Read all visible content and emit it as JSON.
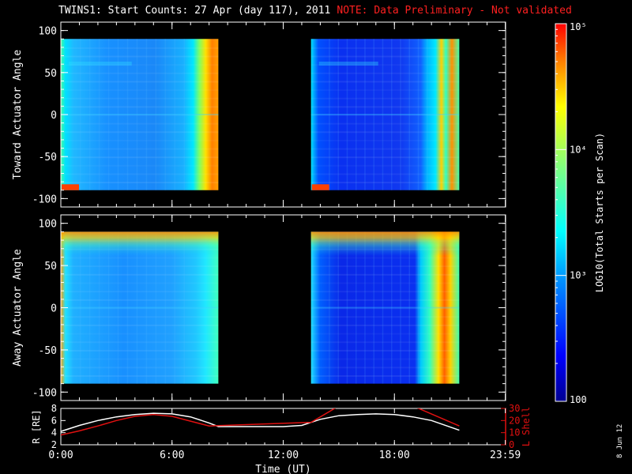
{
  "title": {
    "main": "TWINS1: Start Counts: 27 Apr (day 117), 2011",
    "note": "NOTE: Data Preliminary - Not validated"
  },
  "footer_date": "8 Jun 12",
  "colors": {
    "background": "#000000",
    "note": "#ff2020",
    "r_line": "#ffffff",
    "lshell_line": "#e01010"
  },
  "chart_data": [
    {
      "type": "heatmap",
      "panel": "toward",
      "ylabel": "Toward Actuator Angle",
      "ylim": [
        -110,
        110
      ],
      "yticks": [
        100,
        50,
        0,
        -50,
        -100
      ],
      "xlim": [
        0,
        24
      ],
      "data_blocks": [
        {
          "x": [
            0.0,
            8.5
          ],
          "y": [
            -90,
            90
          ]
        },
        {
          "x": [
            13.5,
            21.5
          ],
          "y": [
            -90,
            90
          ]
        }
      ],
      "features": [
        {
          "desc": "high counts near end of block",
          "x": [
            7.4,
            8.5
          ],
          "level": "high"
        },
        {
          "desc": "low-angle hot spot",
          "x": [
            0.0,
            1.2
          ],
          "y": [
            -90,
            -80
          ],
          "level": "high"
        },
        {
          "desc": "high counts near end of block",
          "x": [
            19.5,
            21.5
          ],
          "level": "high"
        }
      ]
    },
    {
      "type": "heatmap",
      "panel": "away",
      "ylabel": "Away Actuator Angle",
      "ylim": [
        -110,
        110
      ],
      "yticks": [
        100,
        50,
        0,
        -50,
        -100
      ],
      "xlim": [
        0,
        24
      ],
      "data_blocks": [
        {
          "x": [
            0.0,
            8.5
          ],
          "y": [
            -90,
            90
          ]
        },
        {
          "x": [
            13.5,
            21.5
          ],
          "y": [
            -90,
            90
          ]
        }
      ]
    },
    {
      "type": "colorbar",
      "label": "LOG10(Total Starts per Scan)",
      "scale": "log",
      "range": [
        100,
        100000
      ],
      "ticks": [
        {
          "value": 100,
          "label": "100"
        },
        {
          "value": 1000,
          "label": "10³"
        },
        {
          "value": 10000,
          "label": "10⁴"
        },
        {
          "value": 100000,
          "label": "10⁵"
        }
      ]
    },
    {
      "type": "line",
      "panel": "orbit",
      "xlabel": "Time (UT)",
      "xlim": [
        0,
        24
      ],
      "xticks": [
        {
          "value": 0,
          "label": "0:00"
        },
        {
          "value": 6,
          "label": "6:00"
        },
        {
          "value": 12,
          "label": "12:00"
        },
        {
          "value": 18,
          "label": "18:00"
        },
        {
          "value": 23.983,
          "label": "23:59"
        }
      ],
      "left_axis": {
        "label": "R [RE]",
        "ylim": [
          2,
          8
        ],
        "yticks": [
          2,
          4,
          6,
          8
        ]
      },
      "right_axis": {
        "label": "L Shell",
        "ylim": [
          0,
          30
        ],
        "yticks": [
          0,
          10,
          20,
          30
        ]
      },
      "series": [
        {
          "axis": "left",
          "x": [
            0,
            1,
            2,
            3,
            4,
            5,
            6,
            7,
            8,
            8.5,
            9,
            10,
            11,
            12,
            13,
            14,
            15,
            16,
            17,
            18,
            19,
            20,
            21.5
          ],
          "values": [
            4.2,
            5.2,
            6.0,
            6.6,
            7.0,
            7.2,
            7.1,
            6.6,
            5.6,
            5.0,
            5.0,
            5.0,
            5.0,
            5.0,
            5.2,
            6.2,
            6.8,
            7.0,
            7.1,
            7.0,
            6.6,
            6.0,
            4.4
          ]
        },
        {
          "axis": "right",
          "x": [
            0,
            1,
            2,
            3,
            4,
            5,
            6,
            7,
            8,
            8.5,
            13.5,
            15.0,
            19.0,
            21.5
          ],
          "values": [
            8,
            11.5,
            15.5,
            20,
            23.5,
            25,
            23.5,
            19.5,
            15.5,
            15.8,
            18.5,
            32,
            32,
            15.5
          ]
        }
      ]
    }
  ]
}
